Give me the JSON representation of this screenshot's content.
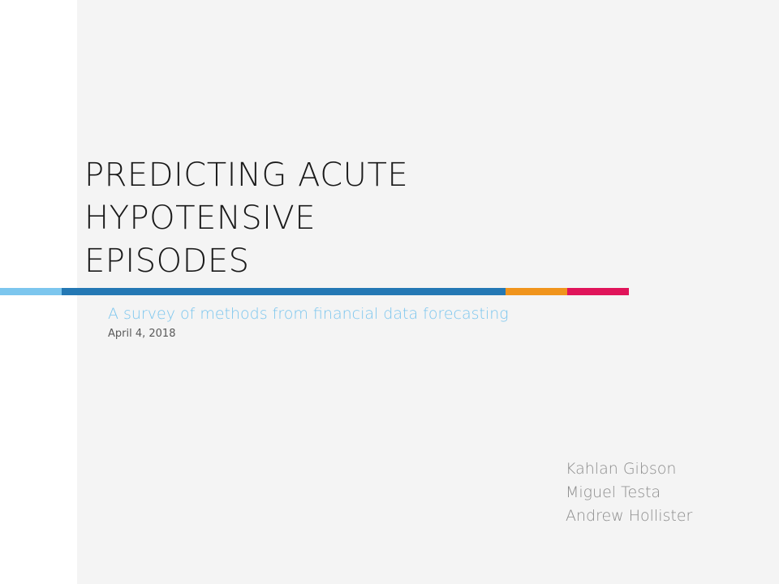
{
  "title_lines": [
    "PREDICTING ACUTE",
    "HYPOTENSIVE",
    "EPISODES"
  ],
  "subtitle": "A survey of methods from financial data forecasting",
  "date": "April 4, 2018",
  "authors": [
    "Kahlan Gibson",
    "Miguel Testa",
    "Andrew Hollister"
  ],
  "colors": {
    "page_background": "#f4f4f4",
    "margin_background": "#ffffff",
    "title_text": "#1a1a1a",
    "subtitle_text": "#7cc6ee",
    "date_text": "#595959",
    "author_text": "#8c8c8c",
    "stripe_light_blue": "#7cc6ee",
    "stripe_blue": "#2478b4",
    "stripe_orange": "#f0941c",
    "stripe_red": "#e0145a"
  }
}
